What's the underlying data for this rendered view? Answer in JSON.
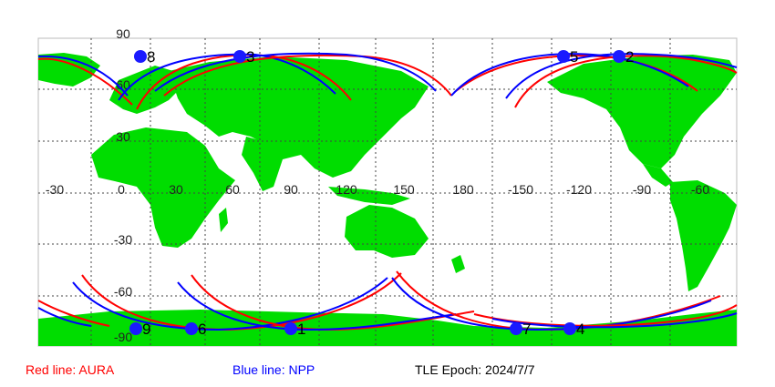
{
  "map": {
    "lon_ticks": [
      "-30",
      "0",
      "30",
      "60",
      "90",
      "120",
      "150",
      "180",
      "-150",
      "-120",
      "-90",
      "-60"
    ],
    "lat_ticks": [
      "90",
      "60",
      "30",
      "-30",
      "-60",
      "-90"
    ],
    "colors": {
      "land": "#00dd00",
      "ocean": "#ffffff",
      "grid": "#444444",
      "aura": "#ff0000",
      "npp": "#0000ff",
      "marker": "#1a1aff"
    },
    "satellites": [
      {
        "label": "8",
        "hemisphere": "north"
      },
      {
        "label": "3",
        "hemisphere": "north"
      },
      {
        "label": "5",
        "hemisphere": "north"
      },
      {
        "label": "2",
        "hemisphere": "north"
      },
      {
        "label": "9",
        "hemisphere": "south"
      },
      {
        "label": "6",
        "hemisphere": "south"
      },
      {
        "label": "1",
        "hemisphere": "south"
      },
      {
        "label": "7",
        "hemisphere": "south"
      },
      {
        "label": "4",
        "hemisphere": "south"
      }
    ]
  },
  "legend": {
    "aura": "Red line: AURA",
    "npp": "Blue line: NPP",
    "epoch": "TLE Epoch: 2024/7/7"
  }
}
